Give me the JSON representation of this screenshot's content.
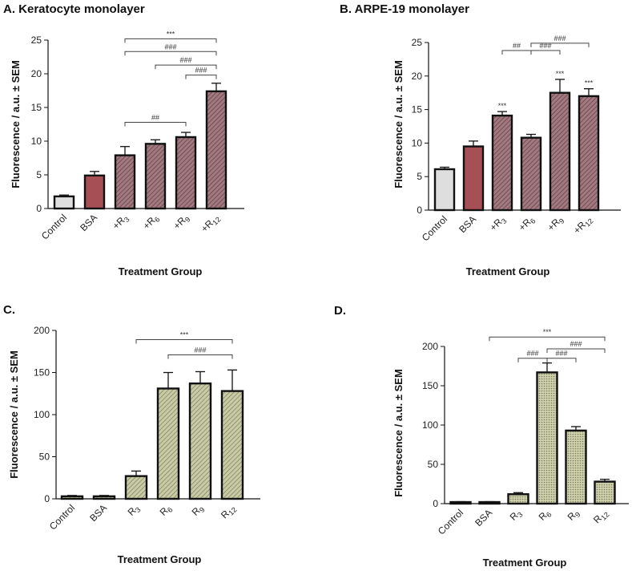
{
  "chart_data": [
    {
      "type": "bar",
      "title": "A. Keratocyte monolayer",
      "xlabel": "Treatment Group",
      "ylabel": "Fluorescence / a.u. ± SEM",
      "ylim": [
        0,
        25
      ],
      "yticks": [
        "0",
        "5",
        "10",
        "15",
        "20",
        "25"
      ],
      "categories": [
        "Control",
        "BSA",
        "+R3",
        "+R6",
        "+R9",
        "+R12"
      ],
      "category_labels": [
        {
          "main": "Control",
          "sub": ""
        },
        {
          "main": "BSA",
          "sub": ""
        },
        {
          "main": "+R",
          "sub": "3"
        },
        {
          "main": "+R",
          "sub": "6"
        },
        {
          "main": "+R",
          "sub": "9"
        },
        {
          "main": "+R",
          "sub": "12"
        }
      ],
      "values": [
        1.8,
        4.9,
        7.9,
        9.6,
        10.6,
        17.4
      ],
      "errors": [
        0.2,
        0.6,
        1.3,
        0.6,
        0.7,
        1.2
      ],
      "bar_styles": [
        "grey",
        "red",
        "hatch-red",
        "hatch-red",
        "hatch-red",
        "hatch-red"
      ],
      "bar_marks": [
        "",
        "",
        "",
        "",
        "",
        ""
      ],
      "brackets": [
        {
          "from": 2,
          "to": 5,
          "label": "***",
          "y": 25.2
        },
        {
          "from": 2,
          "to": 5,
          "label": "###",
          "y": 23.3
        },
        {
          "from": 3,
          "to": 5,
          "label": "###",
          "y": 21.3
        },
        {
          "from": 4,
          "to": 5,
          "label": "###",
          "y": 19.8
        },
        {
          "from": 2,
          "to": 4,
          "label": "##",
          "y": 12.8
        }
      ]
    },
    {
      "type": "bar",
      "title": "B. ARPE-19 monolayer",
      "xlabel": "Treatment Group",
      "ylabel": "Fluorescence / a.u. ± SEM",
      "ylim": [
        0,
        25
      ],
      "yticks": [
        "0",
        "5",
        "10",
        "15",
        "20",
        "25"
      ],
      "categories": [
        "Control",
        "BSA",
        "+R3",
        "+R6",
        "+R9",
        "+R12"
      ],
      "category_labels": [
        {
          "main": "Control",
          "sub": ""
        },
        {
          "main": "BSA",
          "sub": ""
        },
        {
          "main": "+R",
          "sub": "3"
        },
        {
          "main": "+R",
          "sub": "6"
        },
        {
          "main": "+R",
          "sub": "9"
        },
        {
          "main": "+R",
          "sub": "12"
        }
      ],
      "values": [
        6.1,
        9.5,
        14.1,
        10.8,
        17.5,
        17.0
      ],
      "errors": [
        0.3,
        0.8,
        0.6,
        0.5,
        2.0,
        1.1
      ],
      "bar_styles": [
        "grey",
        "red",
        "hatch-red",
        "hatch-red",
        "hatch-red",
        "hatch-red"
      ],
      "bar_marks": [
        "",
        "",
        "***",
        "",
        "***",
        "***"
      ],
      "brackets": [
        {
          "from": 3,
          "to": 5,
          "label": "###",
          "y": 24.9
        },
        {
          "from": 2,
          "to": 3,
          "label": "##",
          "y": 23.8
        },
        {
          "from": 3,
          "to": 4,
          "label": "###",
          "y": 23.8
        }
      ]
    },
    {
      "type": "bar",
      "title": "C.",
      "xlabel": "Treatment Group",
      "ylabel": "Fluorescence / a.u. ± SEM",
      "ylim": [
        0,
        200
      ],
      "yticks": [
        "0",
        "50",
        "100",
        "150",
        "200"
      ],
      "categories": [
        "Control",
        "BSA",
        "R3",
        "R6",
        "R9",
        "R12"
      ],
      "category_labels": [
        {
          "main": "Control",
          "sub": ""
        },
        {
          "main": "BSA",
          "sub": ""
        },
        {
          "main": "R",
          "sub": "3"
        },
        {
          "main": "R",
          "sub": "6"
        },
        {
          "main": "R",
          "sub": "9"
        },
        {
          "main": "R",
          "sub": "12"
        }
      ],
      "values": [
        3,
        3,
        27,
        131,
        137,
        128
      ],
      "errors": [
        1,
        1,
        6,
        19,
        14,
        25
      ],
      "bar_styles": [
        "hatch-green",
        "hatch-green",
        "hatch-green",
        "hatch-green",
        "hatch-green",
        "hatch-green"
      ],
      "bar_marks": [
        "",
        "",
        "",
        "",
        "",
        ""
      ],
      "brackets": [
        {
          "from": 2,
          "to": 5,
          "label": "***",
          "y": 189
        },
        {
          "from": 3,
          "to": 5,
          "label": "###",
          "y": 171
        }
      ]
    },
    {
      "type": "bar",
      "title": "D.",
      "xlabel": "Treatment Group",
      "ylabel": "Fluorescence / a.u. ± SEM",
      "ylim": [
        0,
        200
      ],
      "yticks": [
        "0",
        "50",
        "100",
        "150",
        "200"
      ],
      "categories": [
        "Control",
        "BSA",
        "R3",
        "R6",
        "R9",
        "R12"
      ],
      "category_labels": [
        {
          "main": "Control",
          "sub": ""
        },
        {
          "main": "BSA",
          "sub": ""
        },
        {
          "main": "R",
          "sub": "3"
        },
        {
          "main": "R",
          "sub": "6"
        },
        {
          "main": "R",
          "sub": "9"
        },
        {
          "main": "R",
          "sub": "12"
        }
      ],
      "values": [
        2,
        2,
        12,
        167,
        93,
        28
      ],
      "errors": [
        0.5,
        0.5,
        2,
        12,
        5,
        3
      ],
      "bar_styles": [
        "dots-green",
        "dots-green",
        "dots-green",
        "dots-green",
        "dots-green",
        "dots-green"
      ],
      "bar_marks": [
        "",
        "",
        "",
        "",
        "",
        ""
      ],
      "brackets": [
        {
          "from": 1,
          "to": 5,
          "label": "***",
          "y": 212
        },
        {
          "from": 3,
          "to": 5,
          "label": "###",
          "y": 197
        },
        {
          "from": 2,
          "to": 3,
          "label": "###",
          "y": 185
        },
        {
          "from": 3,
          "to": 4,
          "label": "###",
          "y": 185
        }
      ]
    }
  ],
  "colors": {
    "grey": "#dedede",
    "red": "#a64f55",
    "hatch_red_bg": "#a07a80",
    "hatch_red_line": "#6a4248",
    "green_bg": "#c9caa6",
    "green_line": "#7d7f5a",
    "ink": "#111111"
  }
}
